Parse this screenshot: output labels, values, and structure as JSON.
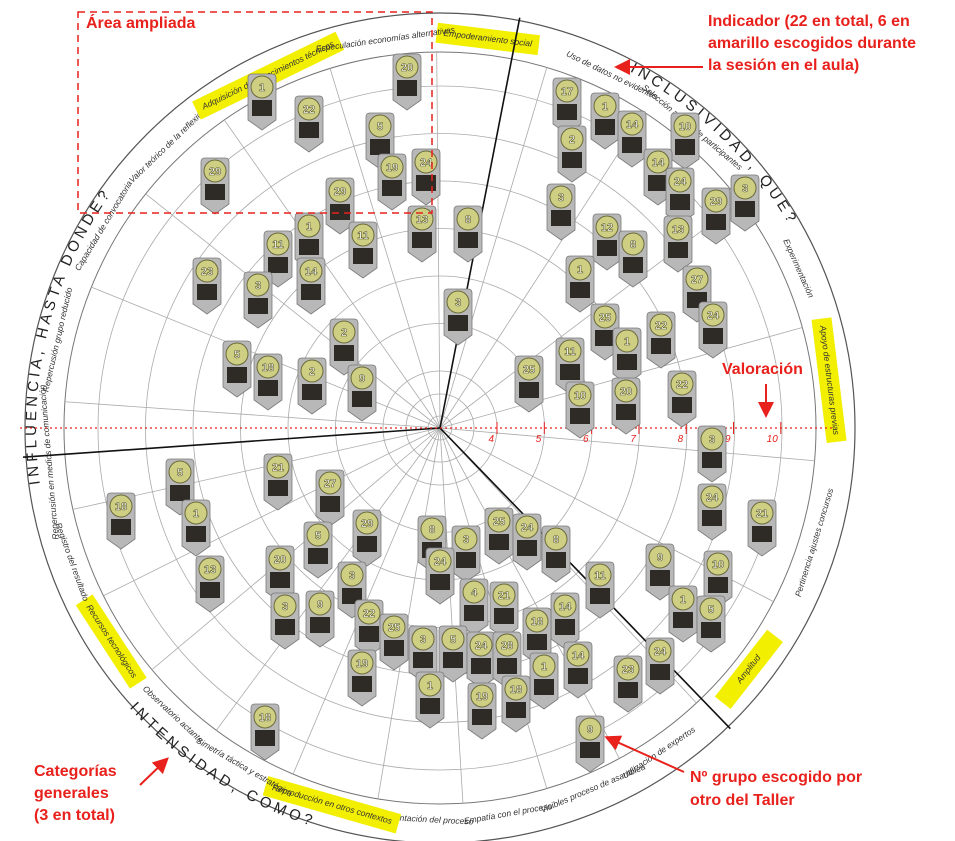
{
  "annotations": {
    "area": "Área ampliada",
    "indicador": [
      "Indicador (22 en total, 6 en",
      "amarillo escogidos durante",
      "la sesión en el aula)"
    ],
    "valoracion": "Valoración",
    "categorias": [
      "Categorías",
      "generales",
      "(3 en total)"
    ],
    "grupo": [
      "Nº grupo escogido por",
      "otro del Taller"
    ]
  },
  "categories": [
    "INCLUSIVIDAD, QUE?",
    "INTENSIDAD, COMO?",
    "INFLUENCIA, HASTA DONDE?"
  ],
  "indicators": [
    {
      "label": "Empoderamiento social",
      "highlight": true
    },
    {
      "label": "Uso de datos no evidentes",
      "highlight": false
    },
    {
      "label": "Selección abierta de participantes",
      "highlight": false
    },
    {
      "label": "Experimentación",
      "highlight": false
    },
    {
      "label": "Apoyo de estructuras previas",
      "highlight": true
    },
    {
      "label": "Pertinencia ajustes concursos",
      "highlight": false
    },
    {
      "label": "Amplitud",
      "highlight": true
    },
    {
      "label": "Utilización de expertos",
      "highlight": false
    },
    {
      "label": "Visibles proceso de asamblea",
      "highlight": false
    },
    {
      "label": "Empatía con el proceso",
      "highlight": false
    },
    {
      "label": "Reglamentación del proceso",
      "highlight": false
    },
    {
      "label": "Reproducción en otros contextos",
      "highlight": true
    },
    {
      "label": "Simetría táctica y estratégica",
      "highlight": false
    },
    {
      "label": "Observatorio actante",
      "highlight": false
    },
    {
      "label": "Recursos tecnológicos",
      "highlight": true
    },
    {
      "label": "Registro del resultado",
      "highlight": false
    },
    {
      "label": "Repercusión en medios de comunicación",
      "highlight": false
    },
    {
      "label": "Repercusión grupo reducido",
      "highlight": false
    },
    {
      "label": "Capacidad de convocatoria",
      "highlight": false
    },
    {
      "label": "Valor teórico de la reflexión",
      "highlight": false
    },
    {
      "label": "Adquisición de conocimientos técnicos",
      "highlight": true
    },
    {
      "label": "Especulación economías alternativas",
      "highlight": false
    }
  ],
  "scale": [
    4,
    5,
    6,
    7,
    8,
    9,
    10
  ],
  "groups": [
    20,
    1,
    22,
    5,
    19,
    24,
    29,
    29,
    13,
    8,
    1,
    11,
    11,
    14,
    23,
    3,
    3,
    2,
    5,
    18,
    2,
    9,
    17,
    1,
    14,
    10,
    2,
    14,
    24,
    3,
    29,
    3,
    12,
    13,
    8,
    1,
    27,
    24,
    25,
    22,
    11,
    1,
    25,
    20,
    22,
    10,
    3,
    24,
    21,
    21,
    27,
    5,
    18,
    1,
    29,
    8,
    25,
    24,
    8,
    3,
    5,
    20,
    24,
    13,
    3,
    9,
    10,
    11,
    4,
    21,
    14,
    18,
    1,
    5,
    22,
    9,
    3,
    25,
    3,
    5,
    24,
    28,
    19,
    1,
    14,
    23,
    24,
    1,
    19,
    18,
    18,
    9
  ]
}
